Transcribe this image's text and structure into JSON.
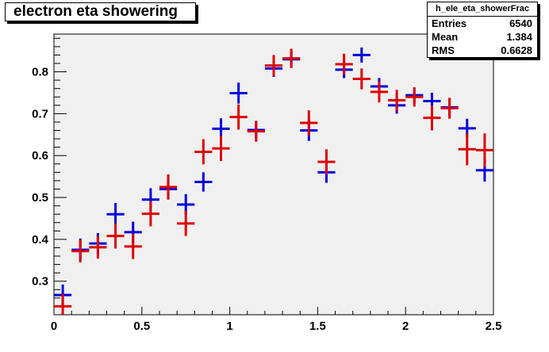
{
  "title": "electron eta showering",
  "stats": {
    "name": "h_ele_eta_showerFrac",
    "rows": [
      {
        "label": "Entries",
        "value": "6540"
      },
      {
        "label": "Mean",
        "value": "1.384"
      },
      {
        "label": "RMS",
        "value": "0.6628"
      }
    ]
  },
  "chart_data": {
    "type": "scatter",
    "title": "electron eta showering",
    "xlabel": "",
    "ylabel": "",
    "xlim": [
      0,
      2.5
    ],
    "ylim": [
      0.22,
      0.89
    ],
    "xticks": [
      "0",
      "0.5",
      "1",
      "1.5",
      "2",
      "2.5"
    ],
    "yticks": [
      "0.3",
      "0.4",
      "0.5",
      "0.6",
      "0.7",
      "0.8"
    ],
    "xtick_values": [
      0,
      0.5,
      1,
      1.5,
      2,
      2.5
    ],
    "ytick_values": [
      0.3,
      0.4,
      0.5,
      0.6,
      0.7,
      0.8
    ],
    "bin_half_width": 0.05,
    "grid": false,
    "frame_fill": "#f0f0f0",
    "series": [
      {
        "color": "#0000dd",
        "points": [
          {
            "x": 0.05,
            "y": 0.267,
            "err": 0.025
          },
          {
            "x": 0.15,
            "y": 0.375,
            "err": 0.027
          },
          {
            "x": 0.25,
            "y": 0.39,
            "err": 0.025
          },
          {
            "x": 0.35,
            "y": 0.46,
            "err": 0.027
          },
          {
            "x": 0.45,
            "y": 0.417,
            "err": 0.025
          },
          {
            "x": 0.55,
            "y": 0.495,
            "err": 0.027
          },
          {
            "x": 0.65,
            "y": 0.52,
            "err": 0.025
          },
          {
            "x": 0.75,
            "y": 0.483,
            "err": 0.025
          },
          {
            "x": 0.85,
            "y": 0.537,
            "err": 0.023
          },
          {
            "x": 0.95,
            "y": 0.664,
            "err": 0.025
          },
          {
            "x": 1.05,
            "y": 0.749,
            "err": 0.025
          },
          {
            "x": 1.15,
            "y": 0.661,
            "err": 0.02
          },
          {
            "x": 1.25,
            "y": 0.808,
            "err": 0.02
          },
          {
            "x": 1.35,
            "y": 0.83,
            "err": 0.018
          },
          {
            "x": 1.45,
            "y": 0.66,
            "err": 0.025
          },
          {
            "x": 1.55,
            "y": 0.56,
            "err": 0.025
          },
          {
            "x": 1.65,
            "y": 0.805,
            "err": 0.02
          },
          {
            "x": 1.75,
            "y": 0.84,
            "err": 0.018
          },
          {
            "x": 1.85,
            "y": 0.765,
            "err": 0.02
          },
          {
            "x": 1.95,
            "y": 0.72,
            "err": 0.02
          },
          {
            "x": 2.05,
            "y": 0.744,
            "err": 0.018
          },
          {
            "x": 2.15,
            "y": 0.73,
            "err": 0.02
          },
          {
            "x": 2.25,
            "y": 0.715,
            "err": 0.02
          },
          {
            "x": 2.35,
            "y": 0.665,
            "err": 0.023
          },
          {
            "x": 2.45,
            "y": 0.565,
            "err": 0.027
          }
        ]
      },
      {
        "color": "#dd0000",
        "points": [
          {
            "x": 0.05,
            "y": 0.24,
            "err": 0.03
          },
          {
            "x": 0.15,
            "y": 0.372,
            "err": 0.027
          },
          {
            "x": 0.25,
            "y": 0.381,
            "err": 0.027
          },
          {
            "x": 0.35,
            "y": 0.408,
            "err": 0.03
          },
          {
            "x": 0.45,
            "y": 0.383,
            "err": 0.03
          },
          {
            "x": 0.55,
            "y": 0.461,
            "err": 0.03
          },
          {
            "x": 0.65,
            "y": 0.525,
            "err": 0.03
          },
          {
            "x": 0.75,
            "y": 0.438,
            "err": 0.03
          },
          {
            "x": 0.85,
            "y": 0.609,
            "err": 0.03
          },
          {
            "x": 0.95,
            "y": 0.617,
            "err": 0.03
          },
          {
            "x": 1.05,
            "y": 0.692,
            "err": 0.03
          },
          {
            "x": 1.15,
            "y": 0.658,
            "err": 0.025
          },
          {
            "x": 1.25,
            "y": 0.815,
            "err": 0.025
          },
          {
            "x": 1.35,
            "y": 0.832,
            "err": 0.023
          },
          {
            "x": 1.45,
            "y": 0.678,
            "err": 0.03
          },
          {
            "x": 1.55,
            "y": 0.585,
            "err": 0.03
          },
          {
            "x": 1.65,
            "y": 0.818,
            "err": 0.025
          },
          {
            "x": 1.75,
            "y": 0.783,
            "err": 0.025
          },
          {
            "x": 1.85,
            "y": 0.752,
            "err": 0.025
          },
          {
            "x": 1.95,
            "y": 0.732,
            "err": 0.025
          },
          {
            "x": 2.05,
            "y": 0.74,
            "err": 0.023
          },
          {
            "x": 2.15,
            "y": 0.69,
            "err": 0.03
          },
          {
            "x": 2.25,
            "y": 0.713,
            "err": 0.025
          },
          {
            "x": 2.35,
            "y": 0.615,
            "err": 0.038
          },
          {
            "x": 2.45,
            "y": 0.613,
            "err": 0.04
          }
        ]
      }
    ]
  }
}
